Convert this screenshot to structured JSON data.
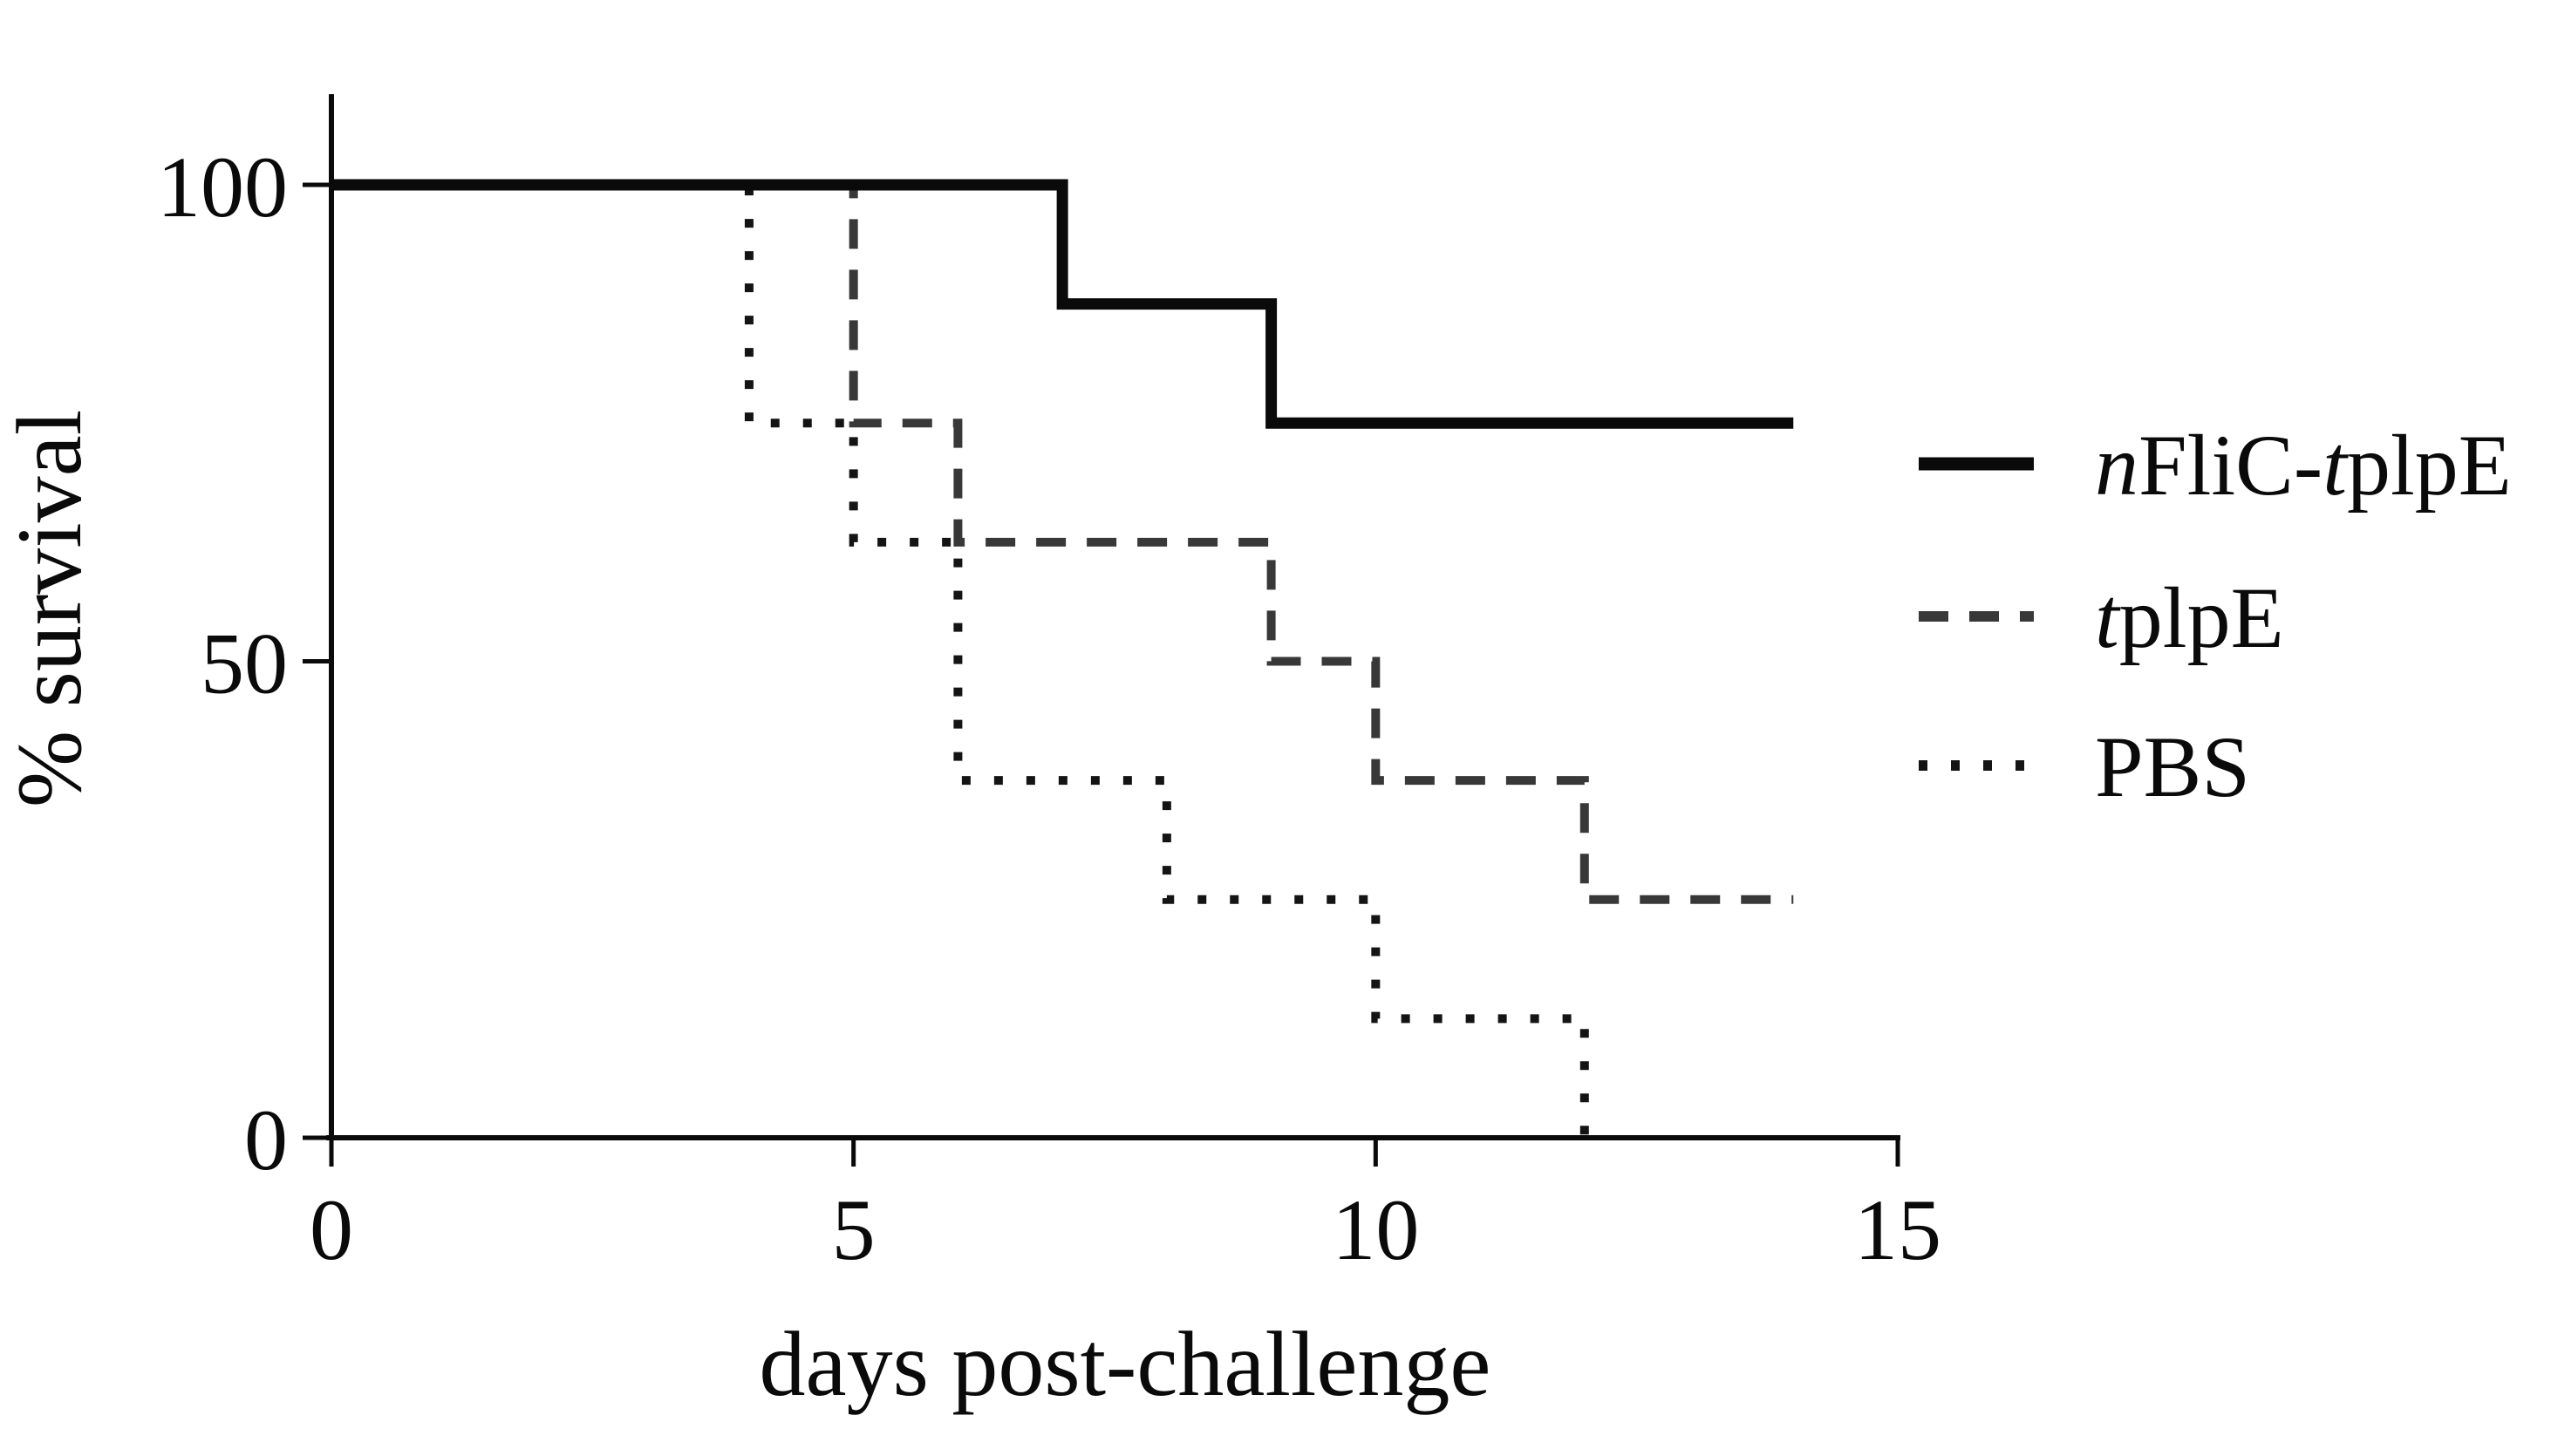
{
  "figure": {
    "background": "#ffffff",
    "text_color": "#0a0a0a"
  },
  "chart_data": {
    "type": "line",
    "variant": "kaplan_meier_step_survival",
    "title": "",
    "xlabel": "days post-challenge",
    "ylabel": "% survival",
    "xlim": [
      0,
      15
    ],
    "ylim": [
      0,
      100
    ],
    "xticks": [
      0,
      5,
      10,
      15
    ],
    "yticks": [
      100,
      50,
      0
    ],
    "grid": false,
    "legend_position": "right",
    "axis_color": "#0a0a0a",
    "series": [
      {
        "name": "nFliC-tplpE",
        "label_parts": [
          {
            "text": "n",
            "italic": true
          },
          {
            "text": "FliC-",
            "italic": false
          },
          {
            "text": "t",
            "italic": true
          },
          {
            "text": "plpE",
            "italic": false
          }
        ],
        "line_style": "solid",
        "color": "#0a0a0a",
        "stroke_width": 13,
        "points": [
          [
            0,
            100
          ],
          [
            7,
            100
          ],
          [
            7,
            87.5
          ],
          [
            9,
            87.5
          ],
          [
            9,
            75
          ],
          [
            14,
            75
          ]
        ]
      },
      {
        "name": "tplpE",
        "label_parts": [
          {
            "text": "t",
            "italic": true
          },
          {
            "text": "plpE",
            "italic": false
          }
        ],
        "line_style": "dashed",
        "color": "#383838",
        "stroke_width": 10,
        "points": [
          [
            0,
            100
          ],
          [
            5,
            100
          ],
          [
            5,
            75
          ],
          [
            6,
            75
          ],
          [
            6,
            62.5
          ],
          [
            9,
            62.5
          ],
          [
            9,
            50
          ],
          [
            10,
            50
          ],
          [
            10,
            37.5
          ],
          [
            12,
            37.5
          ],
          [
            12,
            25
          ],
          [
            14,
            25
          ]
        ]
      },
      {
        "name": "PBS",
        "label_parts": [
          {
            "text": "PBS",
            "italic": false
          }
        ],
        "line_style": "dotted",
        "color": "#141414",
        "stroke_width": 10,
        "points": [
          [
            0,
            100
          ],
          [
            4,
            100
          ],
          [
            4,
            75
          ],
          [
            5,
            75
          ],
          [
            5,
            62.5
          ],
          [
            6,
            62.5
          ],
          [
            6,
            37.5
          ],
          [
            8,
            37.5
          ],
          [
            8,
            25
          ],
          [
            10,
            25
          ],
          [
            10,
            12.5
          ],
          [
            12,
            12.5
          ],
          [
            12,
            0
          ]
        ]
      }
    ]
  }
}
